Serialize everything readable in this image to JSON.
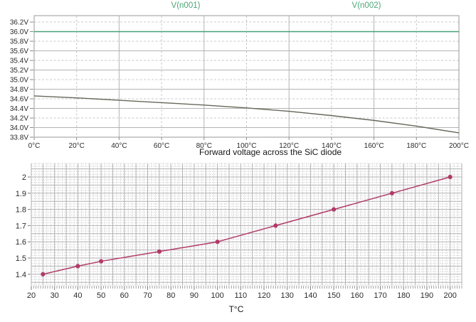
{
  "figure": {
    "background": "#ffffff"
  },
  "chart_data": [
    {
      "type": "line",
      "title": "",
      "legend_position": "top",
      "legend": [
        {
          "label": "V(n001)",
          "color": "#4aa775"
        },
        {
          "label": "V(n002)",
          "color": "#4aa775"
        }
      ],
      "xlabel": "",
      "ylabel": "",
      "xlim": [
        0,
        200
      ],
      "ylim": [
        33.8,
        36.33
      ],
      "grid": "dashed every 0.2V / 20C, solid every 0.4V / 40C, boxed border",
      "x_ticks": [
        0,
        20,
        40,
        60,
        80,
        100,
        120,
        140,
        160,
        180,
        200
      ],
      "x_tick_labels": [
        "0°C",
        "20°C",
        "40°C",
        "60°C",
        "80°C",
        "100°C",
        "120°C",
        "140°C",
        "160°C",
        "180°C",
        "200°C"
      ],
      "y_ticks": [
        33.8,
        34.0,
        34.2,
        34.4,
        34.6,
        34.8,
        35.0,
        35.2,
        35.4,
        35.6,
        35.8,
        36.0,
        36.2
      ],
      "y_tick_labels": [
        "33.8V",
        "34.0V",
        "34.2V",
        "34.4V",
        "34.6V",
        "34.8V",
        "35.0V",
        "35.2V",
        "35.4V",
        "35.6V",
        "35.8V",
        "36.0V",
        "36.2V"
      ],
      "series": [
        {
          "name": "V(n001)",
          "color": "#46a173",
          "x": [
            0,
            200
          ],
          "y": [
            36.0,
            36.0
          ]
        },
        {
          "name": "V(n002)",
          "color": "#67675a",
          "x": [
            0,
            20,
            40,
            60,
            80,
            100,
            120,
            140,
            160,
            180,
            200
          ],
          "y": [
            34.66,
            34.62,
            34.57,
            34.52,
            34.47,
            34.41,
            34.34,
            34.25,
            34.15,
            34.03,
            33.89
          ]
        }
      ]
    },
    {
      "type": "line",
      "title": "Forward voltage across the SiC diode",
      "xlabel": "T°C",
      "ylabel": "",
      "xlim": [
        20,
        205
      ],
      "ylim": [
        1.33,
        2.08
      ],
      "grid": "graph-paper: solid major every 5C / 0.05V, dashed minor at thirds",
      "x_ticks": [
        20,
        30,
        40,
        50,
        60,
        70,
        80,
        90,
        100,
        110,
        120,
        130,
        140,
        150,
        160,
        170,
        180,
        190,
        200
      ],
      "x_tick_labels": [
        "20",
        "30",
        "40",
        "50",
        "60",
        "70",
        "80",
        "90",
        "100",
        "110",
        "120",
        "130",
        "140",
        "150",
        "160",
        "170",
        "180",
        "190",
        "200"
      ],
      "y_ticks": [
        1.4,
        1.5,
        1.6,
        1.7,
        1.8,
        1.9,
        2.0
      ],
      "y_tick_labels": [
        "1.4",
        "1.5",
        "1.6",
        "1.7",
        "1.8",
        "1.9",
        "2"
      ],
      "series": [
        {
          "name": "Forward voltage",
          "color": "#b13a68",
          "marker": "circle",
          "x": [
            25,
            40,
            50,
            75,
            100,
            125,
            150,
            175,
            200
          ],
          "y": [
            1.4,
            1.45,
            1.48,
            1.54,
            1.6,
            1.7,
            1.8,
            1.9,
            2.0
          ]
        }
      ]
    }
  ]
}
